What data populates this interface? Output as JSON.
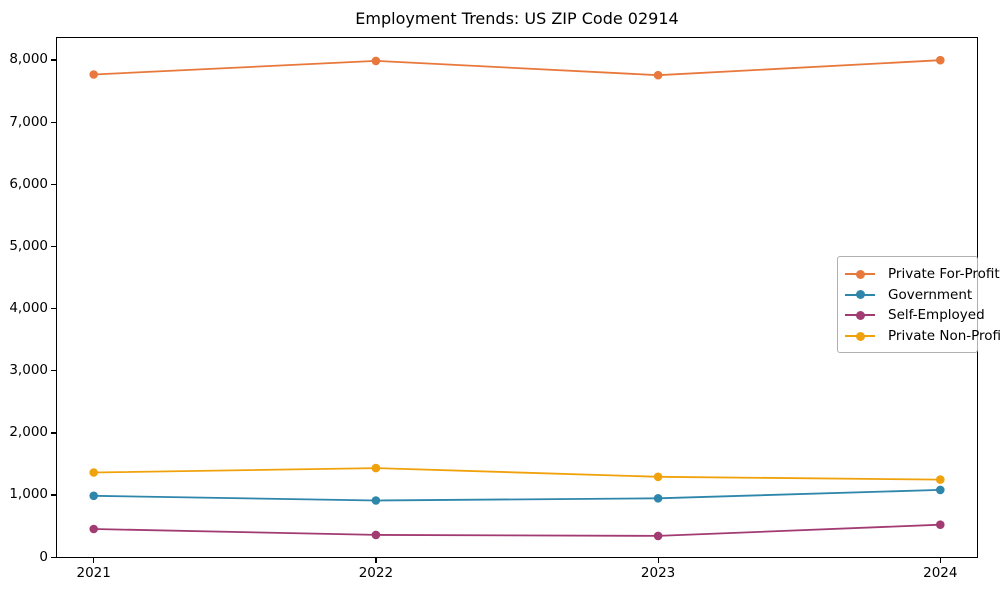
{
  "title": "Employment Trends: US ZIP Code 02914",
  "chart_data": {
    "type": "line",
    "title": "Employment Trends: US ZIP Code 02914",
    "x": [
      2021,
      2022,
      2023,
      2024
    ],
    "categories": [
      "2021",
      "2022",
      "2023",
      "2024"
    ],
    "series": [
      {
        "name": "Private For-Profit",
        "color": "#E8783C",
        "values": [
          7765,
          7985,
          7755,
          7995
        ]
      },
      {
        "name": "Government",
        "color": "#2E86AB",
        "values": [
          985,
          910,
          945,
          1080
        ]
      },
      {
        "name": "Self-Employed",
        "color": "#A23B72",
        "values": [
          450,
          355,
          340,
          520
        ]
      },
      {
        "name": "Private Non-Profit",
        "color": "#F0A20C",
        "values": [
          1360,
          1430,
          1290,
          1245
        ]
      }
    ],
    "xlabel": "",
    "ylabel": "",
    "xlim": [
      2020.87,
      2024.13
    ],
    "ylim": [
      0,
      8353
    ],
    "yticks": [
      0,
      1000,
      2000,
      3000,
      4000,
      5000,
      6000,
      7000,
      8000
    ],
    "ytick_labels": [
      "0",
      "1,000",
      "2,000",
      "3,000",
      "4,000",
      "5,000",
      "6,000",
      "7,000",
      "8,000"
    ],
    "grid": false,
    "legend_position": "center right",
    "marker": "circle",
    "line_width": 1.8,
    "marker_radius": 4.3
  }
}
